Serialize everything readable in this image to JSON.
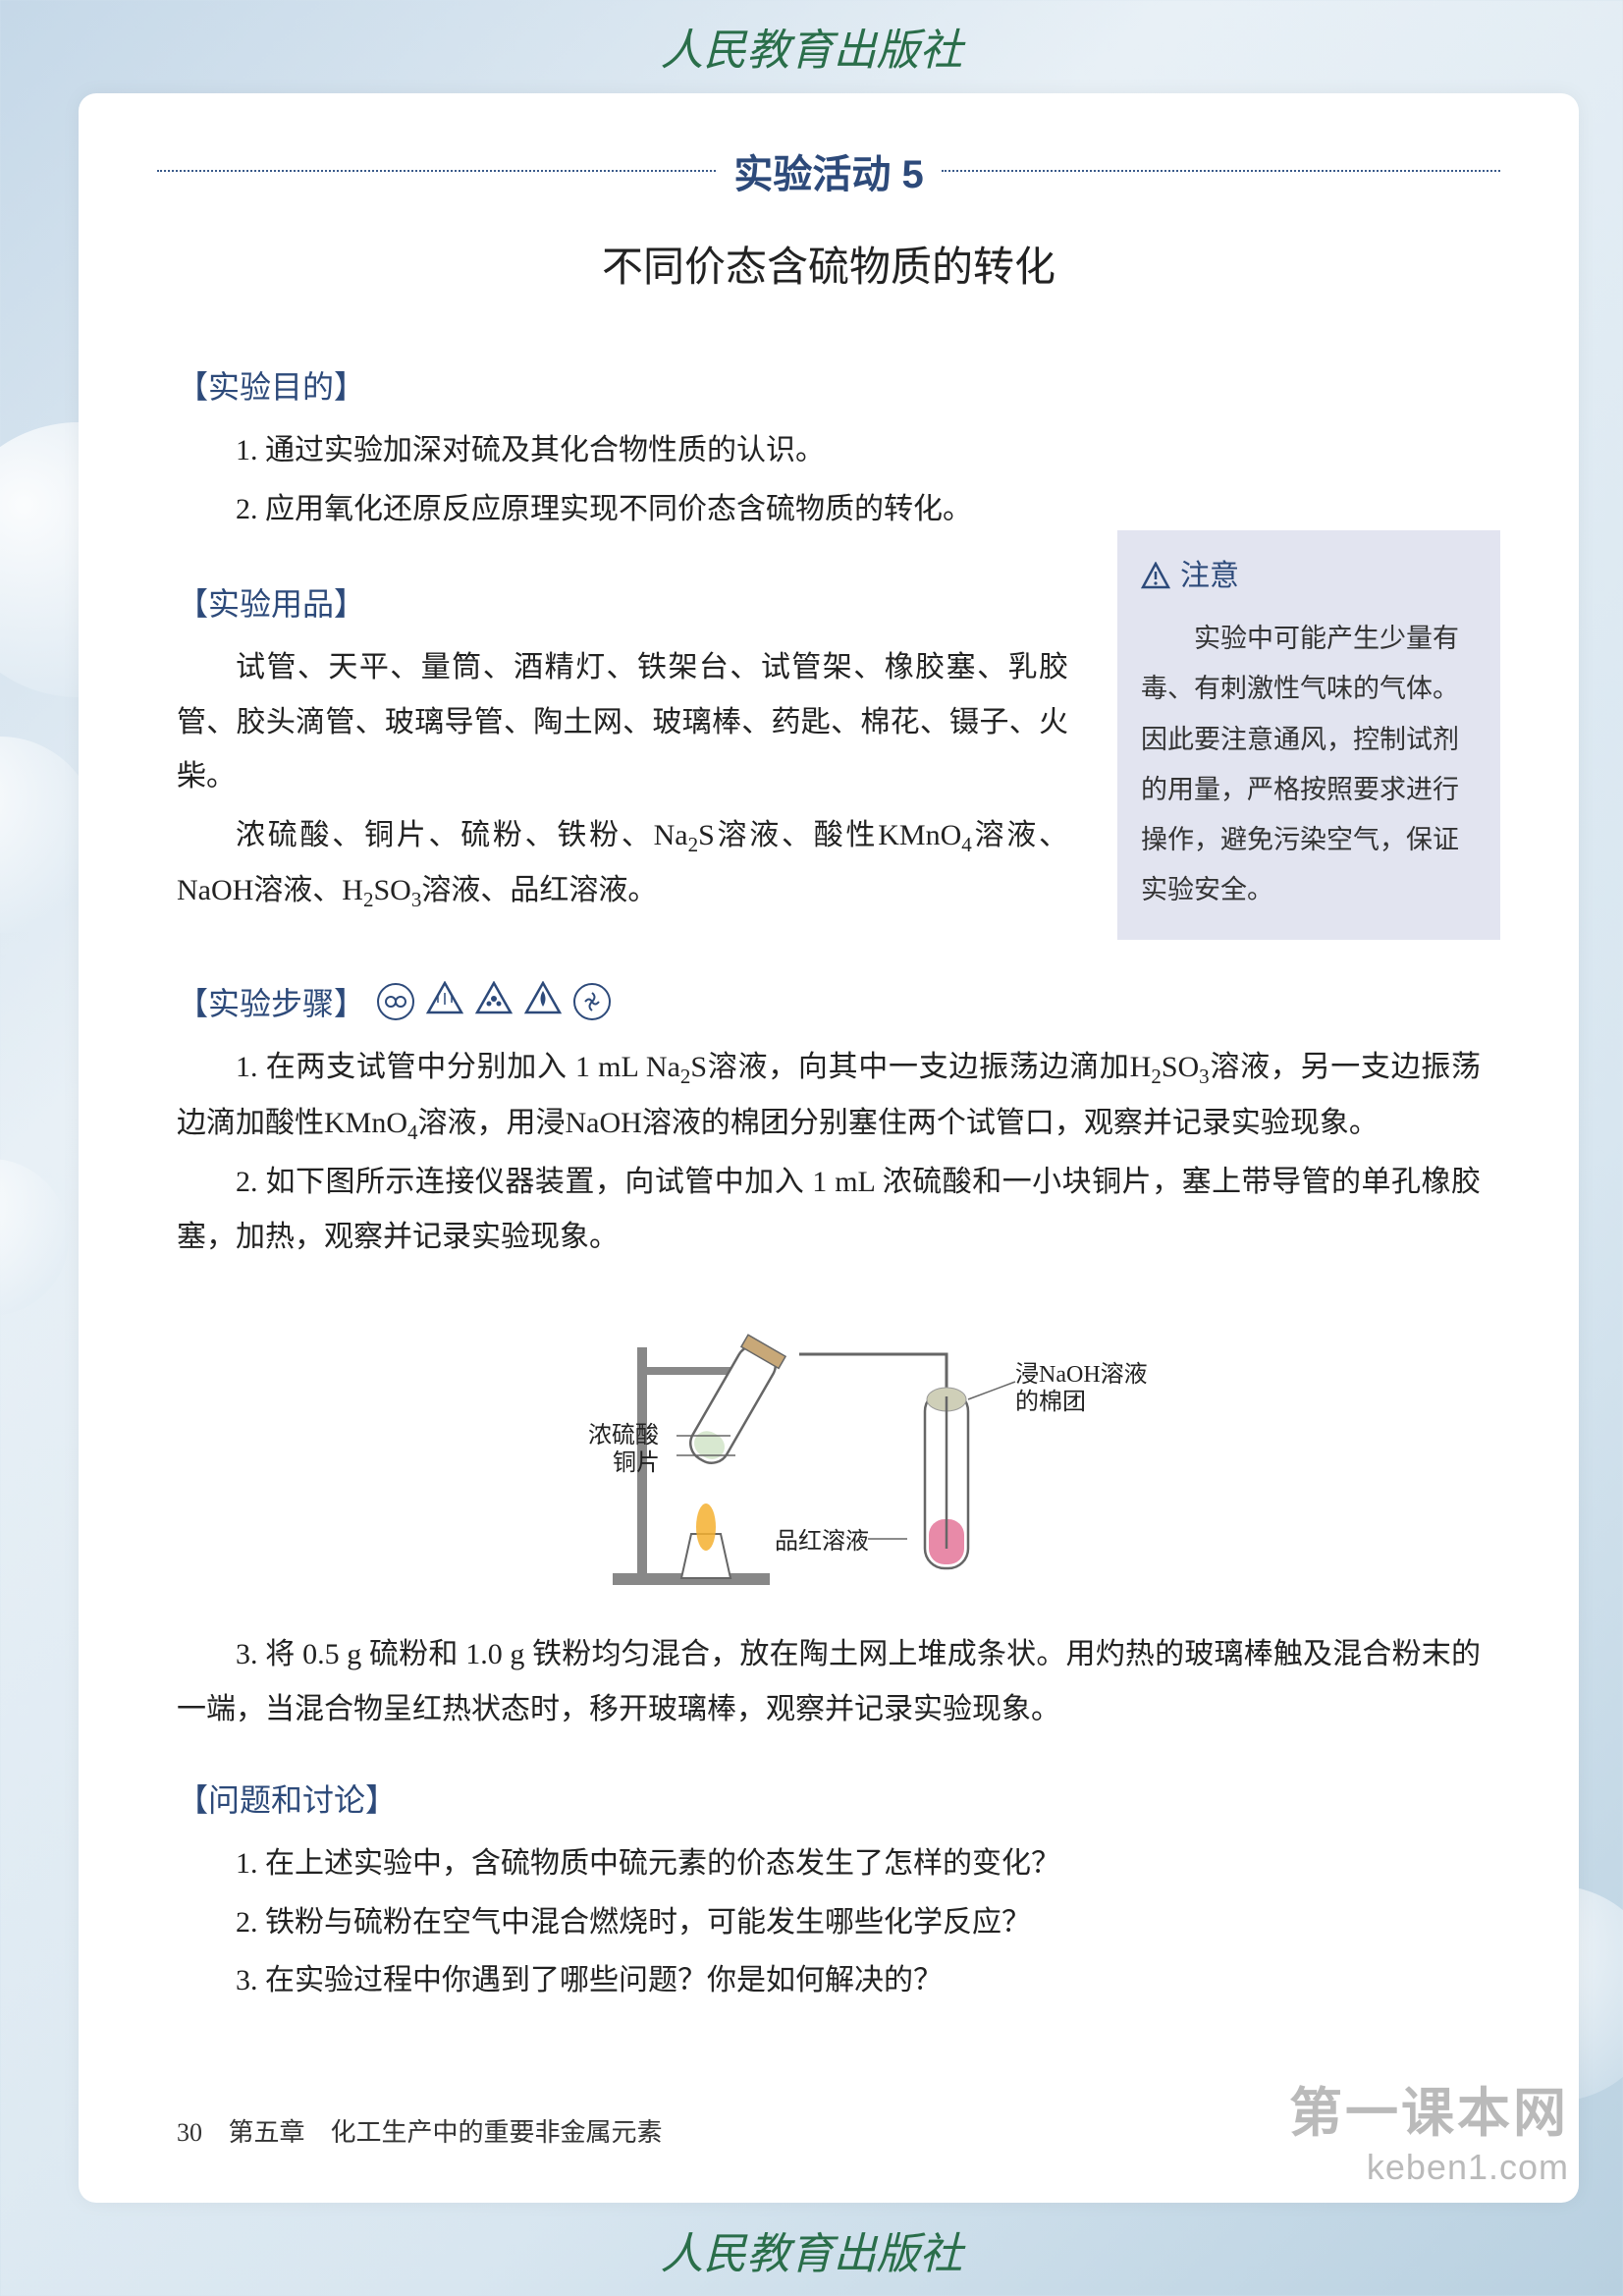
{
  "publisher_top": "人民教育出版社",
  "publisher_bottom": "人民教育出版社",
  "activity_label": "实验活动 5",
  "subtitle": "不同价态含硫物质的转化",
  "sections": {
    "purpose": {
      "heading": "【实验目的】",
      "items": [
        "1. 通过实验加深对硫及其化合物性质的认识。",
        "2. 应用氧化还原反应原理实现不同价态含硫物质的转化。"
      ]
    },
    "materials": {
      "heading": "【实验用品】",
      "para1": "试管、天平、量筒、酒精灯、铁架台、试管架、橡胶塞、乳胶管、胶头滴管、玻璃导管、陶土网、玻璃棒、药匙、棉花、镊子、火柴。",
      "para2_html": "浓硫酸、铜片、硫粉、铁粉、Na<sub>2</sub>S溶液、酸性KMnO<sub>4</sub>溶液、NaOH溶液、H<sub>2</sub>SO<sub>3</sub>溶液、品红溶液。"
    },
    "notice": {
      "heading": "注意",
      "text": "实验中可能产生少量有毒、有刺激性气味的气体。因此要注意通风，控制试剂的用量，严格按照要求进行操作，避免污染空气，保证实验安全。"
    },
    "steps": {
      "heading": "【实验步骤】",
      "s1_html": "1. 在两支试管中分别加入 1 mL Na<sub>2</sub>S溶液，向其中一支边振荡边滴加H<sub>2</sub>SO<sub>3</sub>溶液，另一支边振荡边滴加酸性KMnO<sub>4</sub>溶液，用浸NaOH溶液的棉团分别塞住两个试管口，观察并记录实验现象。",
      "s2": "2. 如下图所示连接仪器装置，向试管中加入 1 mL 浓硫酸和一小块铜片，塞上带导管的单孔橡胶塞，加热，观察并记录实验现象。",
      "s3": "3. 将 0.5 g 硫粉和 1.0 g 铁粉均匀混合，放在陶土网上堆成条状。用灼热的玻璃棒触及混合粉末的一端，当混合物呈红热状态时，移开玻璃棒，观察并记录实验现象。"
    },
    "diagram": {
      "label_left_1": "浓硫酸",
      "label_left_2": "铜片",
      "label_right_1": "浸NaOH溶液",
      "label_right_2": "的棉团",
      "label_bottom": "品红溶液",
      "colors": {
        "line": "#666666",
        "flame": "#f4b030",
        "liquid": "#e88aa8",
        "cotton": "#cfcfb8"
      }
    },
    "discussion": {
      "heading": "【问题和讨论】",
      "q1": "1. 在上述实验中，含硫物质中硫元素的价态发生了怎样的变化？",
      "q2": "2. 铁粉与硫粉在空气中混合燃烧时，可能发生哪些化学反应？",
      "q3": "3. 在实验过程中你遇到了哪些问题？你是如何解决的？"
    }
  },
  "footer": {
    "page_number": "30",
    "chapter": "第五章　化工生产中的重要非金属元素"
  },
  "watermark": {
    "line1": "第一课本网",
    "line2": "keben1.com"
  },
  "colors": {
    "heading": "#2d4a7a",
    "notice_bg": "#e2e4f0",
    "publisher": "#2a6e4a",
    "page_bg": "#ffffff"
  }
}
